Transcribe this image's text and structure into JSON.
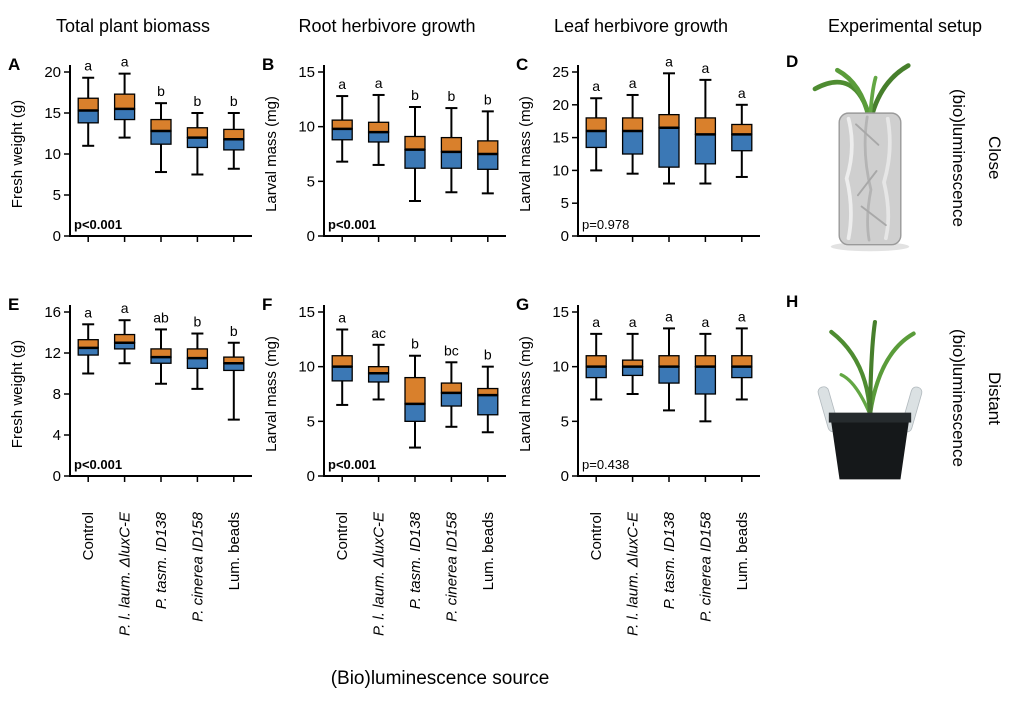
{
  "figure": {
    "column_titles": [
      "Total plant biomass",
      "Root herbivore growth",
      "Leaf herbivore growth",
      "Experimental setup"
    ],
    "bottom_axis_label": "(Bio)luminescence source",
    "categories": [
      {
        "label": "Control",
        "italic": false
      },
      {
        "label": "P. l. laum. ΔluxC-E",
        "italic": true
      },
      {
        "label": "P. tasm. ID138",
        "italic": true
      },
      {
        "label": "P. cinerea ID158",
        "italic": true
      },
      {
        "label": "Lum. beads",
        "italic": false
      }
    ],
    "colors": {
      "box_upper": "#D9802C",
      "box_lower": "#3B78B5",
      "axis": "#000000"
    },
    "setup": {
      "close": {
        "panel": "D",
        "rotated_label": "(bio)luminescence",
        "side_label": "Close"
      },
      "distant": {
        "panel": "H",
        "rotated_label": "(bio)luminescence",
        "side_label": "Distant"
      }
    }
  },
  "chart_data": [
    {
      "type": "box",
      "panel": "A",
      "column_title": "Total plant biomass",
      "row": "Close",
      "ylabel": "Fresh weight (g)",
      "ylim": [
        0,
        20
      ],
      "yticks": [
        0,
        5,
        10,
        15,
        20
      ],
      "p_text": "p<0.001",
      "p_bold": true,
      "letters": [
        "a",
        "a",
        "b",
        "b",
        "b"
      ],
      "boxes": [
        {
          "low": 11.0,
          "q1": 13.8,
          "median": 15.3,
          "q3": 16.8,
          "high": 19.3
        },
        {
          "low": 12.0,
          "q1": 14.2,
          "median": 15.5,
          "q3": 17.3,
          "high": 19.8
        },
        {
          "low": 7.8,
          "q1": 11.2,
          "median": 12.8,
          "q3": 14.2,
          "high": 16.2
        },
        {
          "low": 7.5,
          "q1": 10.8,
          "median": 12.0,
          "q3": 13.2,
          "high": 15.0
        },
        {
          "low": 8.2,
          "q1": 10.5,
          "median": 11.8,
          "q3": 13.0,
          "high": 15.0
        }
      ]
    },
    {
      "type": "box",
      "panel": "B",
      "column_title": "Root herbivore growth",
      "row": "Close",
      "ylabel": "Larval mass (mg)",
      "ylim": [
        0,
        15
      ],
      "yticks": [
        0,
        5,
        10,
        15
      ],
      "p_text": "p<0.001",
      "p_bold": true,
      "letters": [
        "a",
        "a",
        "b",
        "b",
        "b"
      ],
      "boxes": [
        {
          "low": 6.8,
          "q1": 8.8,
          "median": 9.8,
          "q3": 10.6,
          "high": 12.8
        },
        {
          "low": 6.5,
          "q1": 8.6,
          "median": 9.5,
          "q3": 10.4,
          "high": 12.9
        },
        {
          "low": 3.2,
          "q1": 6.2,
          "median": 7.9,
          "q3": 9.1,
          "high": 11.8
        },
        {
          "low": 4.0,
          "q1": 6.2,
          "median": 7.7,
          "q3": 9.0,
          "high": 11.7
        },
        {
          "low": 3.9,
          "q1": 6.1,
          "median": 7.5,
          "q3": 8.7,
          "high": 11.4
        }
      ]
    },
    {
      "type": "box",
      "panel": "C",
      "column_title": "Leaf herbivore growth",
      "row": "Close",
      "ylabel": "Larval mass (mg)",
      "ylim": [
        0,
        25
      ],
      "yticks": [
        0,
        5,
        10,
        15,
        20,
        25
      ],
      "p_text": "p=0.978",
      "p_bold": false,
      "letters": [
        "a",
        "a",
        "a",
        "a",
        "a"
      ],
      "boxes": [
        {
          "low": 10.0,
          "q1": 13.5,
          "median": 16.0,
          "q3": 18.0,
          "high": 21.0
        },
        {
          "low": 9.5,
          "q1": 12.5,
          "median": 16.0,
          "q3": 18.0,
          "high": 21.5
        },
        {
          "low": 8.0,
          "q1": 10.5,
          "median": 16.5,
          "q3": 18.5,
          "high": 24.8
        },
        {
          "low": 8.0,
          "q1": 11.0,
          "median": 15.5,
          "q3": 18.0,
          "high": 23.8
        },
        {
          "low": 9.0,
          "q1": 13.0,
          "median": 15.5,
          "q3": 17.0,
          "high": 20.0
        }
      ]
    },
    {
      "type": "box",
      "panel": "E",
      "column_title": "Total plant biomass",
      "row": "Distant",
      "ylabel": "Fresh weight (g)",
      "ylim": [
        0,
        16
      ],
      "yticks": [
        0,
        4,
        8,
        12,
        16
      ],
      "p_text": "p<0.001",
      "p_bold": true,
      "letters": [
        "a",
        "a",
        "ab",
        "b",
        "b"
      ],
      "boxes": [
        {
          "low": 10.0,
          "q1": 11.8,
          "median": 12.5,
          "q3": 13.3,
          "high": 14.8
        },
        {
          "low": 11.0,
          "q1": 12.4,
          "median": 13.0,
          "q3": 13.8,
          "high": 15.2
        },
        {
          "low": 9.0,
          "q1": 11.0,
          "median": 11.6,
          "q3": 12.4,
          "high": 14.3
        },
        {
          "low": 8.5,
          "q1": 10.5,
          "median": 11.5,
          "q3": 12.4,
          "high": 13.9
        },
        {
          "low": 5.5,
          "q1": 10.3,
          "median": 11.0,
          "q3": 11.6,
          "high": 13.0
        }
      ]
    },
    {
      "type": "box",
      "panel": "F",
      "column_title": "Root herbivore growth",
      "row": "Distant",
      "ylabel": "Larval mass (mg)",
      "ylim": [
        0,
        15
      ],
      "yticks": [
        0,
        5,
        10,
        15
      ],
      "p_text": "p<0.001",
      "p_bold": true,
      "letters": [
        "a",
        "ac",
        "b",
        "bc",
        "b"
      ],
      "boxes": [
        {
          "low": 6.5,
          "q1": 8.7,
          "median": 10.0,
          "q3": 11.0,
          "high": 13.4
        },
        {
          "low": 7.0,
          "q1": 8.6,
          "median": 9.4,
          "q3": 10.0,
          "high": 12.0
        },
        {
          "low": 2.6,
          "q1": 5.0,
          "median": 6.6,
          "q3": 9.0,
          "high": 11.0
        },
        {
          "low": 4.5,
          "q1": 6.4,
          "median": 7.6,
          "q3": 8.5,
          "high": 10.4
        },
        {
          "low": 4.0,
          "q1": 5.6,
          "median": 7.4,
          "q3": 8.0,
          "high": 10.0
        }
      ]
    },
    {
      "type": "box",
      "panel": "G",
      "column_title": "Leaf herbivore growth",
      "row": "Distant",
      "ylabel": "Larval mass (mg)",
      "ylim": [
        0,
        15
      ],
      "yticks": [
        0,
        5,
        10,
        15
      ],
      "p_text": "p=0.438",
      "p_bold": false,
      "letters": [
        "a",
        "a",
        "a",
        "a",
        "a"
      ],
      "boxes": [
        {
          "low": 7.0,
          "q1": 9.0,
          "median": 10.0,
          "q3": 11.0,
          "high": 13.0
        },
        {
          "low": 7.5,
          "q1": 9.2,
          "median": 10.0,
          "q3": 10.6,
          "high": 13.0
        },
        {
          "low": 6.0,
          "q1": 8.5,
          "median": 10.0,
          "q3": 11.0,
          "high": 13.5
        },
        {
          "low": 5.0,
          "q1": 7.5,
          "median": 10.0,
          "q3": 11.0,
          "high": 13.0
        },
        {
          "low": 7.0,
          "q1": 9.0,
          "median": 10.0,
          "q3": 11.0,
          "high": 13.5
        }
      ]
    }
  ]
}
